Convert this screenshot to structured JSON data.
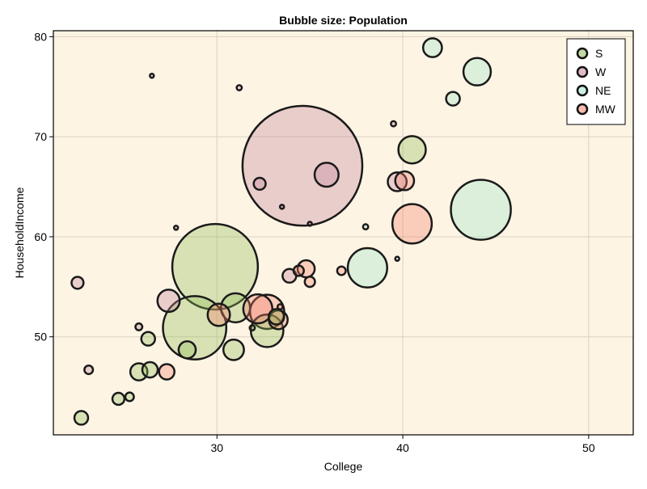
{
  "chart_data": {
    "type": "scatter",
    "title": "Bubble size: Population",
    "xlabel": "College",
    "ylabel": "HouseholdIncome",
    "xlim": [
      21.2,
      52.4
    ],
    "ylim": [
      40.2,
      80.6
    ],
    "xticks": [
      30,
      40,
      50
    ],
    "yticks": [
      50,
      60,
      70,
      80
    ],
    "grid": true,
    "legend_position": "top-right",
    "size_variable": "Population",
    "colors": {
      "background": "#fdf4e3",
      "S": "#8fbc5a",
      "W": "#c4849f",
      "NE": "#9ae6c8",
      "MW": "#f4826e"
    },
    "series": [
      {
        "name": "S",
        "points": [
          {
            "x": 22.7,
            "y": 41.9,
            "size": 8
          },
          {
            "x": 24.7,
            "y": 43.8,
            "size": 7
          },
          {
            "x": 25.3,
            "y": 44.0,
            "size": 5
          },
          {
            "x": 25.8,
            "y": 46.5,
            "size": 10
          },
          {
            "x": 26.4,
            "y": 46.7,
            "size": 9
          },
          {
            "x": 26.3,
            "y": 49.8,
            "size": 8
          },
          {
            "x": 28.4,
            "y": 48.7,
            "size": 10
          },
          {
            "x": 28.8,
            "y": 50.9,
            "size": 37
          },
          {
            "x": 29.9,
            "y": 57.0,
            "size": 50
          },
          {
            "x": 31.0,
            "y": 52.9,
            "size": 17
          },
          {
            "x": 30.9,
            "y": 48.7,
            "size": 12
          },
          {
            "x": 32.7,
            "y": 50.6,
            "size": 19
          },
          {
            "x": 33.2,
            "y": 52.0,
            "size": 9
          },
          {
            "x": 40.5,
            "y": 68.7,
            "size": 16
          },
          {
            "x": 31.9,
            "y": 50.9,
            "size": 3
          }
        ]
      },
      {
        "name": "W",
        "points": [
          {
            "x": 22.5,
            "y": 55.4,
            "size": 7
          },
          {
            "x": 23.1,
            "y": 46.7,
            "size": 5
          },
          {
            "x": 25.8,
            "y": 51.0,
            "size": 4
          },
          {
            "x": 26.5,
            "y": 76.1,
            "size": 2
          },
          {
            "x": 27.8,
            "y": 60.9,
            "size": 2
          },
          {
            "x": 27.4,
            "y": 53.6,
            "size": 13
          },
          {
            "x": 31.2,
            "y": 74.9,
            "size": 3
          },
          {
            "x": 32.3,
            "y": 65.3,
            "size": 7
          },
          {
            "x": 33.5,
            "y": 63.0,
            "size": 2
          },
          {
            "x": 33.9,
            "y": 56.1,
            "size": 8
          },
          {
            "x": 34.6,
            "y": 67.1,
            "size": 70
          },
          {
            "x": 35.0,
            "y": 61.3,
            "size": 2
          },
          {
            "x": 35.9,
            "y": 66.2,
            "size": 14
          },
          {
            "x": 39.5,
            "y": 71.3,
            "size": 3
          },
          {
            "x": 39.7,
            "y": 65.5,
            "size": 11
          }
        ]
      },
      {
        "name": "NE",
        "points": [
          {
            "x": 38.0,
            "y": 61.0,
            "size": 3
          },
          {
            "x": 38.1,
            "y": 56.9,
            "size": 23
          },
          {
            "x": 39.7,
            "y": 57.8,
            "size": 2
          },
          {
            "x": 41.6,
            "y": 78.9,
            "size": 11
          },
          {
            "x": 42.7,
            "y": 73.8,
            "size": 8
          },
          {
            "x": 44.0,
            "y": 76.5,
            "size": 16
          },
          {
            "x": 44.2,
            "y": 62.7,
            "size": 35
          }
        ]
      },
      {
        "name": "MW",
        "points": [
          {
            "x": 27.3,
            "y": 46.5,
            "size": 9
          },
          {
            "x": 30.1,
            "y": 52.2,
            "size": 13
          },
          {
            "x": 32.2,
            "y": 52.8,
            "size": 17
          },
          {
            "x": 32.7,
            "y": 52.5,
            "size": 20
          },
          {
            "x": 33.3,
            "y": 51.7,
            "size": 11
          },
          {
            "x": 33.4,
            "y": 53.0,
            "size": 3
          },
          {
            "x": 34.4,
            "y": 56.6,
            "size": 6
          },
          {
            "x": 34.8,
            "y": 56.8,
            "size": 10
          },
          {
            "x": 35.0,
            "y": 55.5,
            "size": 6
          },
          {
            "x": 36.7,
            "y": 56.6,
            "size": 5
          },
          {
            "x": 40.1,
            "y": 65.6,
            "size": 11
          },
          {
            "x": 40.5,
            "y": 61.3,
            "size": 23
          }
        ]
      }
    ]
  }
}
